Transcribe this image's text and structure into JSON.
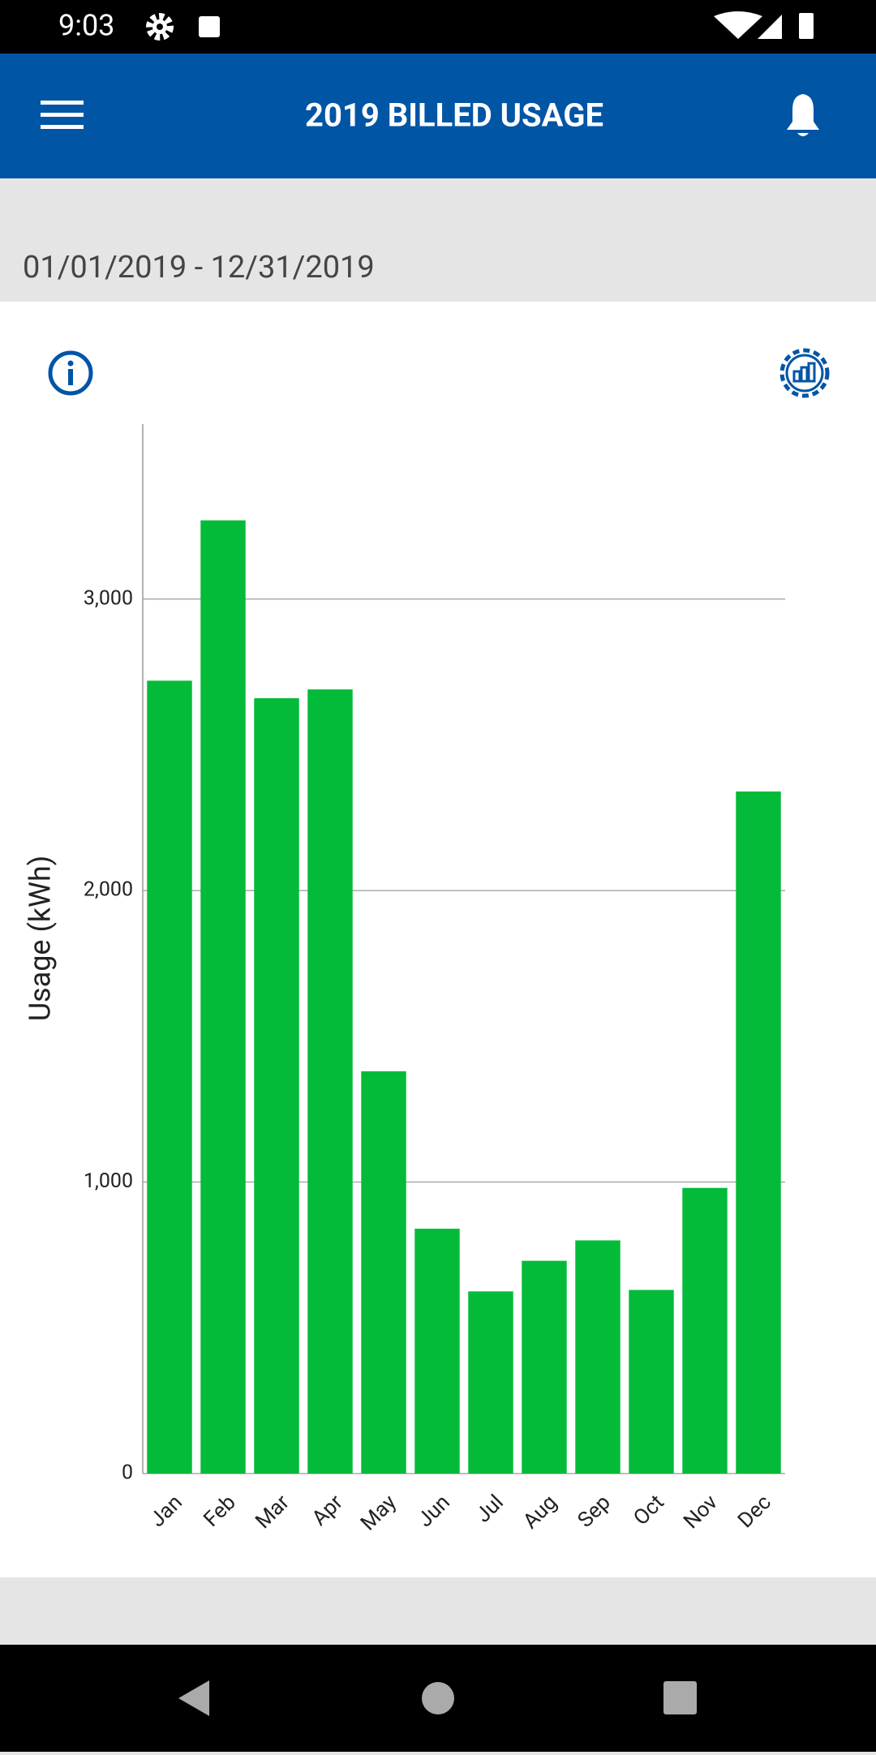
{
  "status_bar": {
    "time": "9:03"
  },
  "header": {
    "title": "2019 BILLED USAGE"
  },
  "date_range": "01/01/2019 - 12/31/2019",
  "chart_data": {
    "type": "bar",
    "y_label": "Usage (kWh)",
    "categories": [
      "Jan",
      "Feb",
      "Mar",
      "Apr",
      "May",
      "Jun",
      "Jul",
      "Aug",
      "Sep",
      "Oct",
      "Nov",
      "Dec"
    ],
    "values": [
      2720,
      3270,
      2660,
      2690,
      1380,
      840,
      625,
      730,
      800,
      630,
      980,
      2340
    ],
    "color": "#04bb39",
    "ylim": [
      0,
      3600
    ],
    "yticks": [
      0,
      {
        "value": 1000,
        "label": "1,000"
      },
      {
        "value": 2000,
        "label": "2,000"
      },
      {
        "value": 3000,
        "label": "3,000"
      }
    ],
    "grid": true
  }
}
